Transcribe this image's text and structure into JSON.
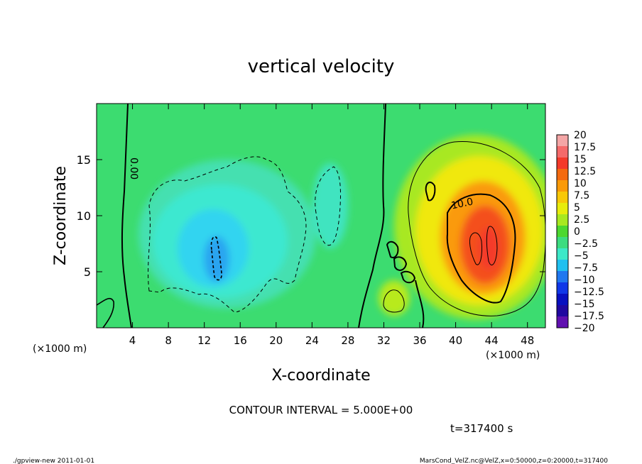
{
  "chart_data": {
    "type": "heatmap",
    "title": "vertical velocity",
    "xlabel": "X-coordinate",
    "ylabel": "Z-coordinate",
    "x_unit_left": "(×1000 m)",
    "x_unit_right": "(×1000 m)",
    "xlim": [
      0,
      50
    ],
    "ylim": [
      0,
      20
    ],
    "x_ticks": [
      4,
      8,
      12,
      16,
      20,
      24,
      28,
      32,
      36,
      40,
      44,
      48
    ],
    "x_tick_labels": [
      "4",
      "8",
      "12",
      "16",
      "20",
      "24",
      "28",
      "32",
      "36",
      "40",
      "44",
      "48"
    ],
    "y_ticks": [
      5,
      10,
      15
    ],
    "y_tick_labels": [
      "5",
      "10",
      "15"
    ],
    "colorbar": {
      "levels": [
        20,
        17.5,
        15,
        12.5,
        10,
        7.5,
        5,
        2.5,
        0,
        -2.5,
        -5,
        -7.5,
        -10,
        -12.5,
        -15,
        -17.5,
        -20
      ],
      "labels": [
        "20",
        "17.5",
        "15",
        "12.5",
        "10",
        "7.5",
        "5",
        "2.5",
        "0",
        "−2.5",
        "−5",
        "−7.5",
        "−10",
        "−12.5",
        "−15",
        "−17.5",
        "−20"
      ],
      "colors": [
        "#f4a6a6",
        "#f56a6a",
        "#f43a2a",
        "#f46a10",
        "#fa9a08",
        "#f8c808",
        "#e8ec0c",
        "#a8e820",
        "#4cd830",
        "#3cdc80",
        "#3ce8c8",
        "#20c0f0",
        "#2078f0",
        "#1038e8",
        "#0810c0",
        "#2008a0",
        "#6010b0"
      ]
    },
    "contour_labels": [
      {
        "text": "0.00",
        "x": 3.8,
        "z": 14.2
      },
      {
        "text": "10.0",
        "x": 40.8,
        "z": 10.8
      }
    ],
    "contour_interval_text": "CONTOUR INTERVAL = 5.000E+00",
    "time_text": "t=317400 s"
  },
  "footer": {
    "left": "./gpview-new  2011-01-01",
    "right": "MarsCond_VelZ.nc@VelZ,x=0:50000,z=0:20000,t=317400"
  }
}
